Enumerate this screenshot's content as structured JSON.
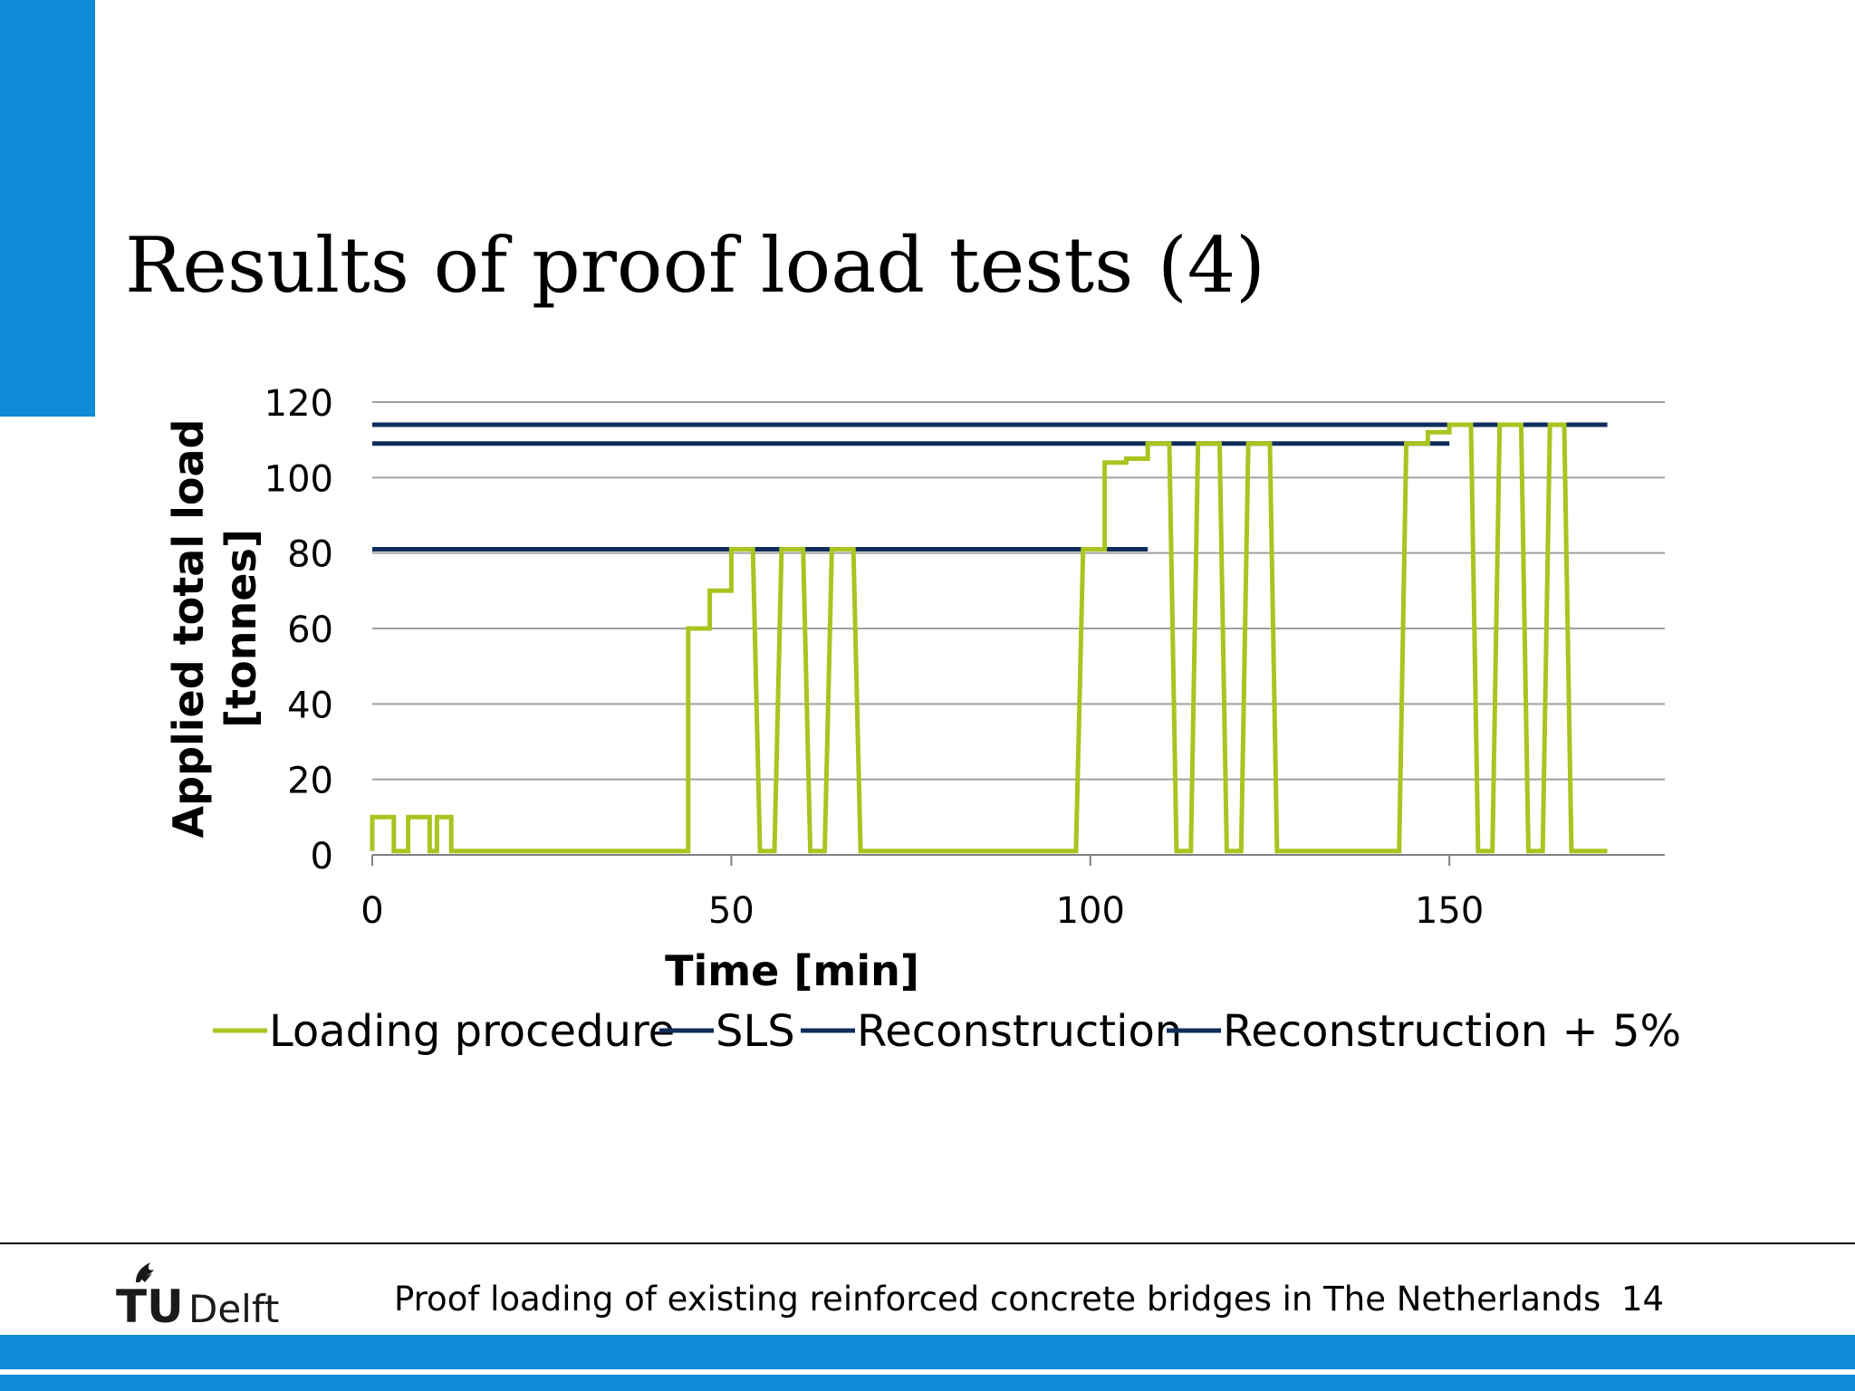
{
  "slide": {
    "title": "Results of proof load tests (4)",
    "footer": "Proof loading of existing reinforced concrete bridges in The Netherlands",
    "page_number": "14",
    "logo": {
      "text_tu": "TU",
      "text_delft": "Delft",
      "icon": "tu-delft-flame-icon"
    }
  },
  "colors": {
    "accent": "#0d8ad8",
    "loading": "#a8c520",
    "threshold": "#0f2d5c",
    "grid": "#a0a0a0",
    "logo_dark": "#1a1a1a"
  },
  "chart_data": {
    "type": "line",
    "title": "",
    "xlabel": "Time [min]",
    "ylabel": "Applied total load [tonnes]",
    "xlim": [
      0,
      180
    ],
    "ylim": [
      0,
      120
    ],
    "x_ticks": [
      0,
      50,
      100,
      150
    ],
    "y_ticks": [
      0,
      20,
      40,
      60,
      80,
      100,
      120
    ],
    "grid": "horizontal",
    "legend_position": "bottom",
    "series": [
      {
        "name": "Loading procedure",
        "color": "#a8c520",
        "x": [
          0,
          0,
          3,
          3,
          5,
          5,
          8,
          8,
          9,
          9,
          11,
          11,
          14,
          14,
          44,
          44,
          47,
          47,
          50,
          50,
          53,
          54,
          56,
          57,
          60,
          61,
          63,
          64,
          67,
          68,
          98,
          99,
          102,
          102,
          105,
          105,
          108,
          108,
          111,
          112,
          114,
          115,
          118,
          119,
          121,
          122,
          125,
          126,
          128,
          129,
          143,
          144,
          147,
          147,
          150,
          150,
          153,
          154,
          156,
          157,
          160,
          161,
          163,
          164,
          166,
          167,
          169,
          170,
          172
        ],
        "y": [
          1,
          10,
          10,
          1,
          1,
          10,
          10,
          1,
          1,
          10,
          10,
          1,
          1,
          1,
          1,
          60,
          60,
          70,
          70,
          81,
          81,
          1,
          1,
          81,
          81,
          1,
          1,
          81,
          81,
          1,
          1,
          81,
          81,
          104,
          104,
          105,
          105,
          109,
          109,
          1,
          1,
          109,
          109,
          1,
          1,
          109,
          109,
          1,
          1,
          1,
          1,
          109,
          109,
          112,
          112,
          114,
          114,
          1,
          1,
          114,
          114,
          1,
          1,
          114,
          114,
          1,
          1,
          1,
          1
        ]
      },
      {
        "name": "SLS",
        "color": "#0f2d5c",
        "x": [
          0,
          108
        ],
        "y": [
          81,
          81
        ]
      },
      {
        "name": "Reconstruction",
        "color": "#0f2d5c",
        "x": [
          0,
          150
        ],
        "y": [
          109,
          109
        ]
      },
      {
        "name": "Reconstruction + 5%",
        "color": "#0f2d5c",
        "x": [
          0,
          172
        ],
        "y": [
          114,
          114
        ]
      }
    ]
  }
}
